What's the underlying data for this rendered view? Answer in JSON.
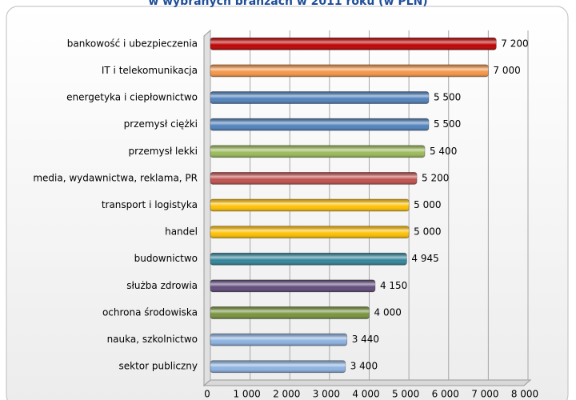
{
  "chart_data": {
    "type": "bar",
    "orientation": "horizontal",
    "title": "w wybranych branżach w 2011 roku (w PLN)",
    "categories": [
      "bankowość i ubezpieczenia",
      "IT i telekomunikacja",
      "energetyka i ciepłownictwo",
      "przemysł ciężki",
      "przemysł lekki",
      "media, wydawnictwa,  reklama, PR",
      "transport i logistyka",
      "handel",
      "budownictwo",
      "służba zdrowia",
      "ochrona środowiska",
      "nauka, szkolnictwo",
      "sektor publiczny"
    ],
    "values": [
      7200,
      7000,
      5500,
      5500,
      5400,
      5200,
      5000,
      5000,
      4945,
      4150,
      4000,
      3440,
      3400
    ],
    "value_labels": [
      "7 200",
      "7 000",
      "5 500",
      "5 500",
      "5 400",
      "5 200",
      "5 000",
      "5 000",
      "4 945",
      "4 150",
      "4 000",
      "3 440",
      "3 400"
    ],
    "colors": [
      "#c00000",
      "#f79646",
      "#4f81bd",
      "#4f81bd",
      "#9bbb59",
      "#c0504d",
      "#ffc000",
      "#ffc000",
      "#31859c",
      "#604a7b",
      "#77933c",
      "#8db3e2",
      "#8db3e2"
    ],
    "xlim": [
      0,
      8000
    ],
    "xticks": [
      0,
      {
        "value": 1000,
        "label": "1 000"
      },
      {
        "value": 2000,
        "label": "2 000"
      },
      {
        "value": 3000,
        "label": "3 000"
      },
      {
        "value": 4000,
        "label": "4 000"
      },
      {
        "value": 5000,
        "label": "5 000"
      },
      {
        "value": 6000,
        "label": "6 000"
      },
      {
        "value": 7000,
        "label": "7 000"
      },
      {
        "value": 8000,
        "label": "8 000"
      }
    ],
    "grid": true
  }
}
